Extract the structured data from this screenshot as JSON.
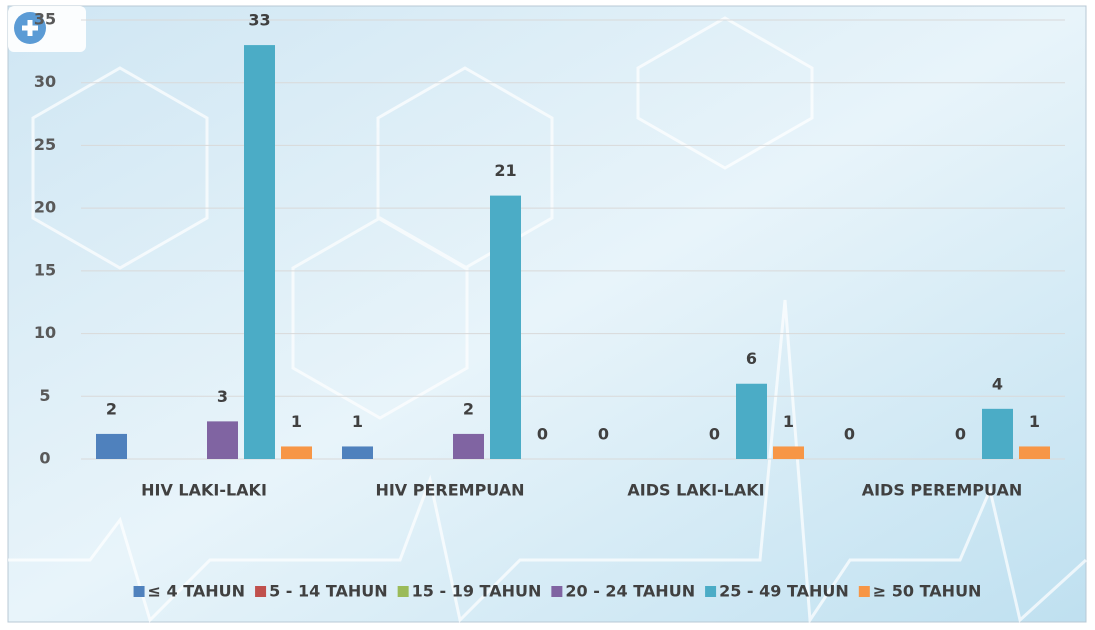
{
  "chart_data": {
    "type": "bar",
    "categories": [
      "HIV LAKI-LAKI",
      "HIV PEREMPUAN",
      "AIDS LAKI-LAKI",
      "AIDS PEREMPUAN"
    ],
    "series": [
      {
        "name": "≤ 4 TAHUN",
        "color": "#4f81bd",
        "values": [
          2,
          1,
          0,
          0
        ]
      },
      {
        "name": "5 - 14 TAHUN",
        "color": "#c0504d",
        "values": [
          null,
          null,
          null,
          null
        ]
      },
      {
        "name": "15 - 19 TAHUN",
        "color": "#9bbb59",
        "values": [
          null,
          null,
          null,
          null
        ]
      },
      {
        "name": "20 - 24 TAHUN",
        "color": "#8064a2",
        "values": [
          3,
          2,
          0,
          0
        ]
      },
      {
        "name": "25 - 49 TAHUN",
        "color": "#4bacc6",
        "values": [
          33,
          21,
          6,
          4
        ]
      },
      {
        "name": "≥ 50 TAHUN",
        "color": "#f79646",
        "values": [
          1,
          0,
          1,
          1
        ]
      }
    ],
    "ylim": [
      0,
      35
    ],
    "yticks": [
      0,
      5,
      10,
      15,
      20,
      25,
      30,
      35
    ],
    "grid": true,
    "legend": "bottom"
  }
}
